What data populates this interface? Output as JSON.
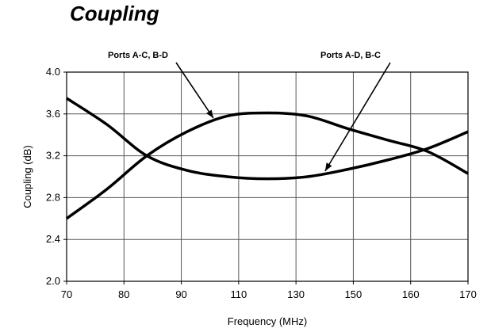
{
  "chart_data": {
    "type": "line",
    "title": "Coupling",
    "xlabel": "Frequency (MHz)",
    "ylabel": "Coupling (dB)",
    "xlim": [
      70,
      170
    ],
    "ylim": [
      2.0,
      4.0
    ],
    "x_ticks": [
      70,
      80,
      90,
      110,
      130,
      150,
      160,
      170
    ],
    "x_tick_labels": [
      "70",
      "80",
      "90",
      "110",
      "130",
      "150",
      "160",
      "170"
    ],
    "y_ticks": [
      2.0,
      2.4,
      2.8,
      3.2,
      3.6,
      4.0
    ],
    "y_tick_labels": [
      "2.0",
      "2.4",
      "2.8",
      "3.2",
      "3.6",
      "4.0"
    ],
    "grid": "on",
    "series": [
      {
        "name": "Ports A-C, B-D",
        "color": "#000000",
        "points": [
          [
            70,
            2.6
          ],
          [
            80,
            2.88
          ],
          [
            90,
            3.2
          ],
          [
            100,
            3.43
          ],
          [
            110,
            3.58
          ],
          [
            120,
            3.61
          ],
          [
            130,
            3.58
          ],
          [
            140,
            3.46
          ],
          [
            150,
            3.35
          ],
          [
            160,
            3.24
          ],
          [
            170,
            3.03
          ]
        ]
      },
      {
        "name": "Ports A-D, B-C",
        "color": "#000000",
        "points": [
          [
            70,
            3.75
          ],
          [
            80,
            3.5
          ],
          [
            90,
            3.2
          ],
          [
            100,
            3.06
          ],
          [
            110,
            3.0
          ],
          [
            120,
            2.98
          ],
          [
            130,
            3.0
          ],
          [
            140,
            3.07
          ],
          [
            150,
            3.16
          ],
          [
            160,
            3.27
          ],
          [
            170,
            3.43
          ]
        ]
      }
    ],
    "annotations": [
      {
        "text": "Ports A-C, B-D",
        "series": 0,
        "at_x": 107
      },
      {
        "text": "Ports A-D, B-C",
        "series": 1,
        "at_x": 134
      }
    ]
  }
}
